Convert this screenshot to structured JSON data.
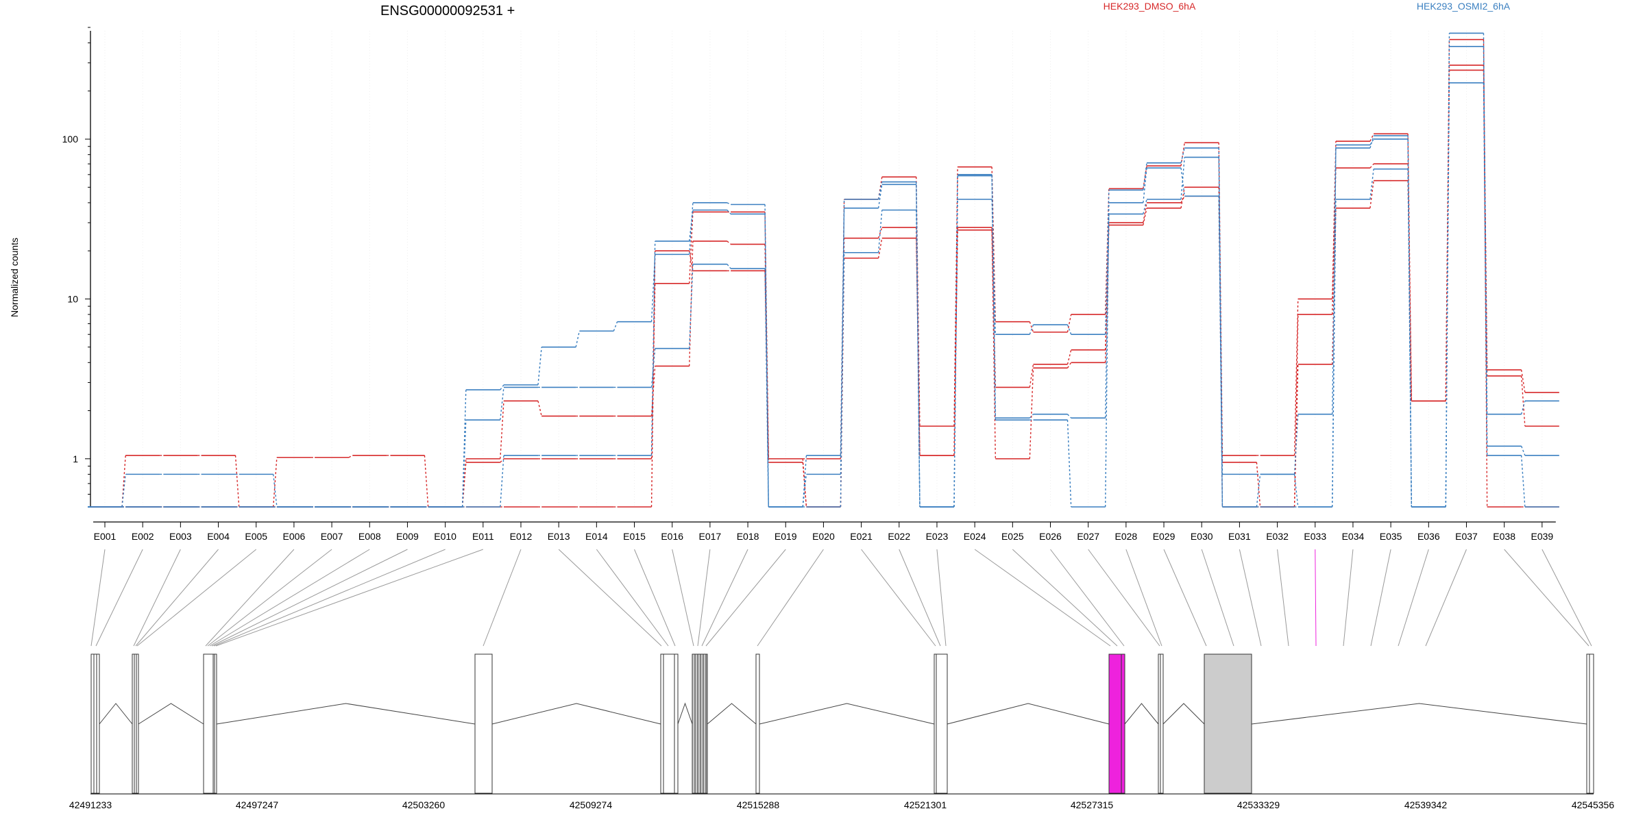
{
  "chart_data": {
    "type": "line",
    "title": "ENSG00000092531 +",
    "ylabel": "Normalized counts",
    "yscale": "log",
    "ylim": [
      0.5,
      500
    ],
    "yticks": [
      1,
      10,
      100
    ],
    "ytick_labels": [
      "1",
      "10",
      "100"
    ],
    "legend": [
      {
        "name": "HEK293_DMSO_6hA",
        "color": "#d62728"
      },
      {
        "name": "HEK293_OSMI2_6hA",
        "color": "#3a7fc0"
      }
    ],
    "categories": [
      "E001",
      "E002",
      "E003",
      "E004",
      "E005",
      "E006",
      "E007",
      "E008",
      "E009",
      "E010",
      "E011",
      "E012",
      "E013",
      "E014",
      "E015",
      "E016",
      "E017",
      "E018",
      "E019",
      "E020",
      "E021",
      "E022",
      "E023",
      "E024",
      "E025",
      "E026",
      "E027",
      "E028",
      "E029",
      "E030",
      "E031",
      "E032",
      "E033",
      "E034",
      "E035",
      "E036",
      "E037",
      "E038",
      "E039"
    ],
    "series": [
      {
        "group": "HEK293_DMSO_6hA",
        "color": "#d62728",
        "values": [
          0.5,
          1.05,
          1.05,
          1.05,
          0.5,
          1.02,
          1.02,
          1.05,
          1.05,
          0.5,
          0.95,
          1.0,
          1.0,
          1.0,
          1.0,
          12.5,
          35.0,
          35.0,
          1.0,
          1.0,
          42.0,
          58.0,
          1.6,
          67.0,
          7.2,
          6.2,
          8.0,
          49.0,
          68.0,
          95.0,
          1.05,
          1.05,
          10.0,
          97.0,
          108.0,
          2.3,
          290.0,
          3.6,
          2.6
        ]
      },
      {
        "group": "HEK293_DMSO_6hA",
        "color": "#d62728",
        "values": [
          0.5,
          0.5,
          0.5,
          0.5,
          0.5,
          0.5,
          0.5,
          0.5,
          0.5,
          0.5,
          1.0,
          2.3,
          1.85,
          1.85,
          1.85,
          3.8,
          23.0,
          22.0,
          0.95,
          0.5,
          24.0,
          28.0,
          1.05,
          28.0,
          2.8,
          3.9,
          4.8,
          30.0,
          40.0,
          44.0,
          0.95,
          0.5,
          8.0,
          66.0,
          70.0,
          2.3,
          270.0,
          3.3,
          1.6
        ]
      },
      {
        "group": "HEK293_DMSO_6hA",
        "color": "#d62728",
        "values": [
          0.5,
          0.5,
          0.5,
          0.5,
          0.5,
          0.5,
          0.5,
          0.5,
          0.5,
          0.5,
          0.5,
          0.5,
          0.5,
          0.5,
          0.5,
          20.0,
          15.0,
          15.0,
          1.0,
          0.5,
          18.0,
          24.0,
          1.05,
          27.0,
          1.0,
          3.7,
          4.0,
          29.0,
          37.0,
          50.0,
          0.5,
          0.5,
          3.9,
          37.0,
          55.0,
          2.3,
          420.0,
          0.5,
          0.5
        ]
      },
      {
        "group": "HEK293_OSMI2_6hA",
        "color": "#3a7fc0",
        "values": [
          0.5,
          0.8,
          0.8,
          0.8,
          0.8,
          0.5,
          0.5,
          0.5,
          0.5,
          0.5,
          1.75,
          2.8,
          2.8,
          2.8,
          2.8,
          4.9,
          16.5,
          15.5,
          0.5,
          1.05,
          37.0,
          52.0,
          0.5,
          42.0,
          6.0,
          6.9,
          6.0,
          48.0,
          71.0,
          88.0,
          0.8,
          0.8,
          1.9,
          88.0,
          105.0,
          0.5,
          460.0,
          1.9,
          2.3
        ]
      },
      {
        "group": "HEK293_OSMI2_6hA",
        "color": "#3a7fc0",
        "values": [
          0.5,
          0.5,
          0.5,
          0.5,
          0.5,
          0.5,
          0.5,
          0.5,
          0.5,
          0.5,
          2.7,
          2.9,
          5.0,
          6.3,
          7.2,
          19.0,
          40.0,
          39.0,
          0.5,
          0.8,
          19.5,
          36.0,
          0.5,
          60.0,
          1.8,
          1.9,
          1.8,
          34.0,
          42.0,
          77.0,
          0.5,
          0.5,
          0.5,
          42.0,
          65.0,
          0.5,
          380.0,
          1.2,
          1.05
        ]
      },
      {
        "group": "HEK293_OSMI2_6hA",
        "color": "#3a7fc0",
        "values": [
          0.5,
          0.5,
          0.5,
          0.5,
          0.5,
          0.5,
          0.5,
          0.5,
          0.5,
          0.5,
          0.5,
          1.05,
          1.05,
          1.05,
          1.05,
          23.0,
          36.0,
          34.0,
          0.5,
          0.5,
          42.0,
          54.0,
          0.5,
          59.0,
          1.75,
          1.75,
          0.5,
          40.0,
          66.0,
          44.0,
          0.5,
          0.8,
          0.5,
          92.0,
          100.0,
          0.5,
          225.0,
          1.05,
          0.5
        ]
      }
    ],
    "gene_model": {
      "axis_ticks": [
        "42491233",
        "42497247",
        "42503260",
        "42509274",
        "42515288",
        "42521301",
        "42527315",
        "42533329",
        "42539342",
        "42545356"
      ],
      "highlighted_exon": "E033",
      "highlight_color": "#ee22dd"
    }
  }
}
